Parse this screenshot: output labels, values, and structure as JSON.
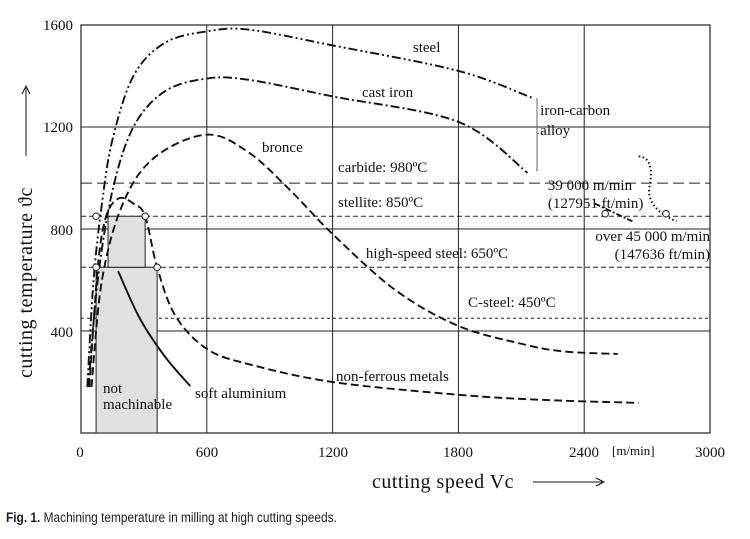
{
  "chart_data": {
    "type": "line",
    "xlabel": "cutting speed Vc",
    "xunit": "[m/min]",
    "ylabel": "cutting temperature ϑc",
    "xlim": [
      0,
      3000
    ],
    "ylim": [
      0,
      1600
    ],
    "xticks": [
      "0",
      "600",
      "1200",
      "1800",
      "2400",
      "3000"
    ],
    "yticks": [
      "400",
      "800",
      "1200",
      "1600"
    ],
    "grid": true,
    "series": [
      {
        "name": "steel",
        "style": "dash-dot-dot",
        "points": [
          [
            30,
            180
          ],
          [
            60,
            600
          ],
          [
            100,
            900
          ],
          [
            150,
            1150
          ],
          [
            250,
            1400
          ],
          [
            400,
            1530
          ],
          [
            600,
            1575
          ],
          [
            800,
            1582
          ],
          [
            1200,
            1520
          ],
          [
            1800,
            1420
          ],
          [
            2150,
            1315
          ]
        ]
      },
      {
        "name": "cast iron",
        "style": "dash-dot",
        "points": [
          [
            35,
            180
          ],
          [
            80,
            600
          ],
          [
            150,
            950
          ],
          [
            250,
            1200
          ],
          [
            400,
            1340
          ],
          [
            600,
            1390
          ],
          [
            800,
            1385
          ],
          [
            1200,
            1320
          ],
          [
            1800,
            1220
          ],
          [
            2130,
            1020
          ]
        ]
      },
      {
        "name": "bronce",
        "style": "dashed",
        "points": [
          [
            50,
            180
          ],
          [
            100,
            600
          ],
          [
            200,
            900
          ],
          [
            350,
            1080
          ],
          [
            600,
            1170
          ],
          [
            800,
            1100
          ],
          [
            1000,
            950
          ],
          [
            1200,
            780
          ],
          [
            1500,
            560
          ],
          [
            1800,
            420
          ],
          [
            2100,
            350
          ],
          [
            2300,
            320
          ],
          [
            2560,
            310
          ]
        ]
      },
      {
        "name": "non-ferrous metals",
        "style": "dashed",
        "points": [
          [
            40,
            180
          ],
          [
            80,
            650
          ],
          [
            120,
            850
          ],
          [
            180,
            920
          ],
          [
            250,
            900
          ],
          [
            306,
            850
          ],
          [
            363,
            650
          ],
          [
            450,
            460
          ],
          [
            600,
            330
          ],
          [
            800,
            270
          ],
          [
            1200,
            200
          ],
          [
            1800,
            150
          ],
          [
            2200,
            130
          ],
          [
            2660,
            118
          ]
        ]
      },
      {
        "name": "soft aluminium",
        "style": "solid",
        "points": [
          [
            177,
            635
          ],
          [
            280,
            450
          ],
          [
            400,
            300
          ],
          [
            521,
            184
          ]
        ]
      }
    ],
    "reference_lines": [
      {
        "label": "carbide: 980ºC",
        "y": 980
      },
      {
        "label": "stellite: 850ºC",
        "y": 850
      },
      {
        "label": "high-speed steel: 650ºC",
        "y": 650
      },
      {
        "label": "C-steel: 450ºC",
        "y": 450
      }
    ],
    "region": {
      "label_line1": "not",
      "label_line2": "machinable",
      "x_range": [
        72,
        363
      ],
      "upper_x_range": [
        129,
        306
      ],
      "fill": "#e0e0e0"
    },
    "annotations": {
      "iron_carbon_line1": "iron-carbon",
      "iron_carbon_line2": "alloy",
      "speed_39000_line1": "39 000 m/min",
      "speed_39000_line2": "(127951 ft/min)",
      "speed_45000_line1": "over 45 000 m/min",
      "speed_45000_line2": "(147636 ft/min)"
    }
  },
  "caption": {
    "label": "Fig. 1.",
    "text": " Machining temperature in milling at high cutting speeds."
  }
}
